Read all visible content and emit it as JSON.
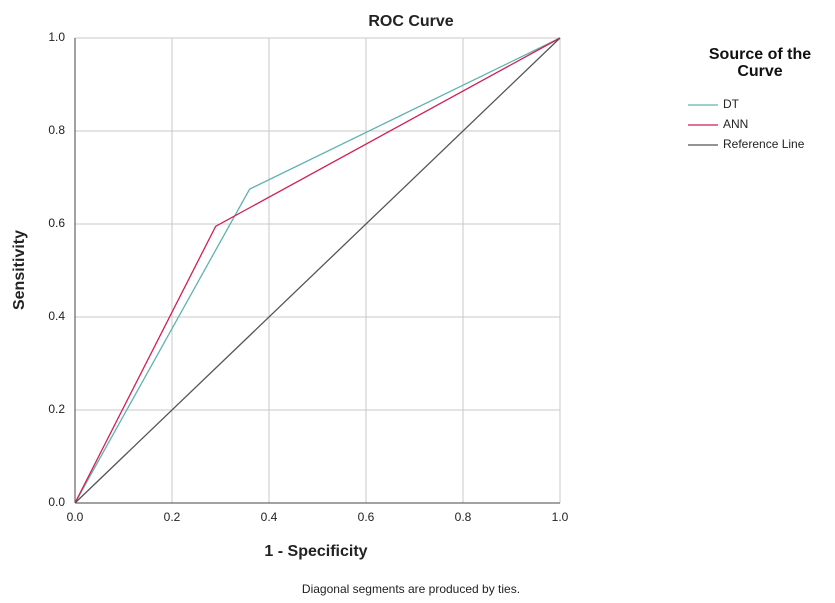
{
  "chart_data": {
    "type": "line",
    "title": "ROC Curve",
    "xlabel": "1 - Specificity",
    "ylabel": "Sensitivity",
    "footnote": "Diagonal segments are produced by ties.",
    "legend_title": "Source of the Curve",
    "xlim": [
      0,
      1
    ],
    "ylim": [
      0,
      1
    ],
    "xticks": [
      {
        "value": 0,
        "label": "0.0"
      },
      0.2,
      0.4,
      0.6,
      0.8,
      {
        "value": 1,
        "label": "1.0"
      }
    ],
    "yticks": [
      {
        "value": 0,
        "label": "0.0"
      },
      0.2,
      0.4,
      0.6,
      0.8,
      {
        "value": 1,
        "label": "1.0"
      }
    ],
    "grid": true,
    "legend": "right",
    "series": [
      {
        "name": "DT",
        "color": "#5fb3b0",
        "x": [
          0,
          0.36,
          1
        ],
        "values": [
          0,
          0.675,
          1
        ]
      },
      {
        "name": "ANN",
        "color": "#d21f55",
        "x": [
          0,
          0.29,
          1
        ],
        "values": [
          0,
          0.595,
          1
        ]
      },
      {
        "name": "Reference Line",
        "color": "#555555",
        "x": [
          0,
          1
        ],
        "values": [
          0,
          1
        ]
      }
    ]
  }
}
